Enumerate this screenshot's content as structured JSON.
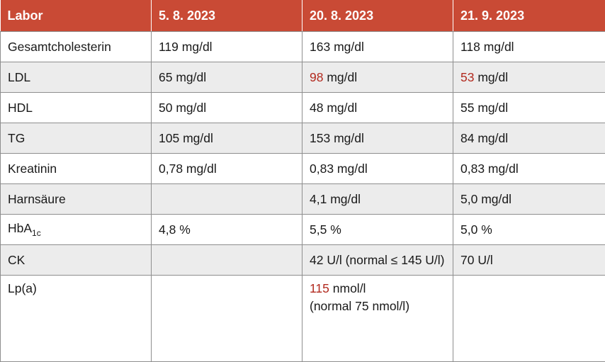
{
  "table": {
    "header": [
      "Labor",
      "5. 8. 2023",
      "20. 8. 2023",
      "21. 9. 2023"
    ],
    "highlight_color": "#b22a1f",
    "header_color": "#c94a35",
    "rows": [
      {
        "label": "Gesamtcholesterin",
        "c1": {
          "value": "119",
          "unit": " mg/dl"
        },
        "c2": {
          "value": "163",
          "unit": " mg/dl"
        },
        "c3": {
          "value": "118",
          "unit": " mg/dl"
        }
      },
      {
        "label": "LDL",
        "c1": {
          "value": "65",
          "unit": " mg/dl"
        },
        "c2": {
          "value": "98",
          "unit": " mg/dl",
          "highlight": true
        },
        "c3": {
          "value": "53",
          "unit": " mg/dl",
          "highlight": true
        }
      },
      {
        "label": "HDL",
        "c1": {
          "value": "50",
          "unit": " mg/dl"
        },
        "c2": {
          "value": "48",
          "unit": " mg/dl"
        },
        "c3": {
          "value": "55",
          "unit": " mg/dl"
        }
      },
      {
        "label": "TG",
        "c1": {
          "value": "105",
          "unit": " mg/dl"
        },
        "c2": {
          "value": "153",
          "unit": " mg/dl"
        },
        "c3": {
          "value": "84",
          "unit": " mg/dl"
        }
      },
      {
        "label": "Kreatinin",
        "c1": {
          "value": "0,78",
          "unit": " mg/dl"
        },
        "c2": {
          "value": "0,83",
          "unit": " mg/dl"
        },
        "c3": {
          "value": "0,83",
          "unit": " mg/dl"
        }
      },
      {
        "label": "Harnsäure",
        "c1": {
          "value": "",
          "unit": ""
        },
        "c2": {
          "value": "4,1",
          "unit": " mg/dl"
        },
        "c3": {
          "value": "5,0",
          "unit": " mg/dl"
        }
      },
      {
        "label": "HbA",
        "label_sub": "1c",
        "c1": {
          "value": "4,8",
          "unit": " %"
        },
        "c2": {
          "value": "5,5",
          "unit": " %"
        },
        "c3": {
          "value": "5,0",
          "unit": " %"
        }
      },
      {
        "label": "CK",
        "c1": {
          "value": "",
          "unit": ""
        },
        "c2": {
          "value": "42",
          "unit": " U/l (normal ≤ 145 U/l)"
        },
        "c3": {
          "value": "70",
          "unit": " U/l"
        }
      }
    ],
    "last_row": {
      "label": "Lp(a)",
      "c2_value": "115",
      "c2_unit": " nmol/l",
      "c2_note": "(normal 75 nmol/l)"
    }
  }
}
